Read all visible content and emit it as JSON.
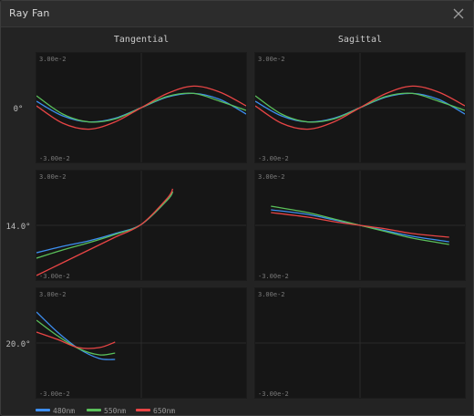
{
  "window": {
    "title": "Ray Fan"
  },
  "column_titles": [
    "Tangential",
    "Sagittal"
  ],
  "row_labels": [
    "0°",
    "14.0°",
    "20.0°"
  ],
  "axis": {
    "ymax_label": "3.00e-2",
    "ymin_label": "-3.00e-2"
  },
  "legend": [
    {
      "label": "480nm",
      "color": "#3d8ef0"
    },
    {
      "label": "550nm",
      "color": "#5ac05a"
    },
    {
      "label": "650nm",
      "color": "#e84545"
    }
  ],
  "chart_data": [
    {
      "type": "line",
      "field": "0°",
      "view": "Tangential",
      "xlim": [
        -1,
        1
      ],
      "ylim": [
        -0.03,
        0.03
      ],
      "grid": true,
      "series": [
        {
          "name": "480nm",
          "color": "#3d8ef0",
          "x": [
            -1,
            -0.75,
            -0.5,
            -0.25,
            0,
            0.25,
            0.5,
            0.75,
            1
          ],
          "y": [
            0.0035,
            -0.0045,
            -0.0078,
            -0.0058,
            0,
            0.0058,
            0.0078,
            0.0045,
            -0.0035
          ]
        },
        {
          "name": "550nm",
          "color": "#5ac05a",
          "x": [
            -1,
            -0.75,
            -0.5,
            -0.25,
            0,
            0.25,
            0.5,
            0.75,
            1
          ],
          "y": [
            0.0065,
            -0.0035,
            -0.0078,
            -0.0062,
            0,
            0.0062,
            0.0078,
            0.0035,
            -0.0015
          ]
        },
        {
          "name": "650nm",
          "color": "#e84545",
          "x": [
            -1,
            -0.75,
            -0.5,
            -0.25,
            0,
            0.25,
            0.5,
            0.75,
            1
          ],
          "y": [
            0.001,
            -0.0085,
            -0.0118,
            -0.0078,
            0,
            0.0078,
            0.0118,
            0.0085,
            0.001
          ]
        }
      ]
    },
    {
      "type": "line",
      "field": "0°",
      "view": "Sagittal",
      "xlim": [
        -1,
        1
      ],
      "ylim": [
        -0.03,
        0.03
      ],
      "grid": true,
      "series": [
        {
          "name": "480nm",
          "color": "#3d8ef0",
          "x": [
            -1,
            -0.75,
            -0.5,
            -0.25,
            0,
            0.25,
            0.5,
            0.75,
            1
          ],
          "y": [
            0.0035,
            -0.0045,
            -0.0078,
            -0.0058,
            0,
            0.0058,
            0.0078,
            0.0045,
            -0.0035
          ]
        },
        {
          "name": "550nm",
          "color": "#5ac05a",
          "x": [
            -1,
            -0.75,
            -0.5,
            -0.25,
            0,
            0.25,
            0.5,
            0.75,
            1
          ],
          "y": [
            0.0065,
            -0.0035,
            -0.0078,
            -0.0062,
            0,
            0.0062,
            0.0078,
            0.0035,
            -0.0015
          ]
        },
        {
          "name": "650nm",
          "color": "#e84545",
          "x": [
            -1,
            -0.75,
            -0.5,
            -0.25,
            0,
            0.25,
            0.5,
            0.75,
            1
          ],
          "y": [
            0.001,
            -0.0085,
            -0.0118,
            -0.0078,
            0,
            0.0078,
            0.0118,
            0.0085,
            0.001
          ]
        }
      ]
    },
    {
      "type": "line",
      "field": "14.0°",
      "view": "Tangential",
      "xlim": [
        -1,
        1
      ],
      "ylim": [
        -0.03,
        0.03
      ],
      "grid": true,
      "series": [
        {
          "name": "480nm",
          "color": "#3d8ef0",
          "x": [
            -1,
            -0.75,
            -0.5,
            -0.25,
            0,
            0.25,
            0.3
          ],
          "y": [
            -0.015,
            -0.0115,
            -0.0085,
            -0.0045,
            0.0005,
            0.014,
            0.0185
          ]
        },
        {
          "name": "550nm",
          "color": "#5ac05a",
          "x": [
            -1,
            -0.75,
            -0.5,
            -0.25,
            0,
            0.25,
            0.3
          ],
          "y": [
            -0.018,
            -0.0135,
            -0.0095,
            -0.005,
            0.0005,
            0.014,
            0.0185
          ]
        },
        {
          "name": "650nm",
          "color": "#e84545",
          "x": [
            -1,
            -0.75,
            -0.5,
            -0.25,
            0,
            0.25,
            0.3
          ],
          "y": [
            -0.0275,
            -0.0205,
            -0.0135,
            -0.0065,
            0.0005,
            0.015,
            0.02
          ]
        }
      ]
    },
    {
      "type": "line",
      "field": "14.0°",
      "view": "Sagittal",
      "xlim": [
        -1,
        1
      ],
      "ylim": [
        -0.03,
        0.03
      ],
      "grid": true,
      "series": [
        {
          "name": "480nm",
          "color": "#3d8ef0",
          "x": [
            -0.85,
            -0.5,
            -0.25,
            0,
            0.25,
            0.5,
            0.85
          ],
          "y": [
            0.0085,
            0.006,
            0.003,
            0,
            -0.003,
            -0.006,
            -0.009
          ]
        },
        {
          "name": "550nm",
          "color": "#5ac05a",
          "x": [
            -0.85,
            -0.5,
            -0.25,
            0,
            0.25,
            0.5,
            0.85
          ],
          "y": [
            0.0105,
            0.007,
            0.0035,
            0,
            -0.0035,
            -0.007,
            -0.0105
          ]
        },
        {
          "name": "650nm",
          "color": "#e84545",
          "x": [
            -0.85,
            -0.5,
            -0.25,
            0,
            0.25,
            0.5,
            0.85
          ],
          "y": [
            0.007,
            0.0045,
            0.002,
            0,
            -0.002,
            -0.0045,
            -0.0065
          ]
        }
      ]
    },
    {
      "type": "line",
      "field": "20.0°",
      "view": "Tangential",
      "xlim": [
        -1,
        1
      ],
      "ylim": [
        -0.03,
        0.03
      ],
      "grid": true,
      "series": [
        {
          "name": "480nm",
          "color": "#3d8ef0",
          "x": [
            -1,
            -0.8,
            -0.6,
            -0.4,
            -0.25
          ],
          "y": [
            0.017,
            0.006,
            -0.003,
            -0.0085,
            -0.009
          ]
        },
        {
          "name": "550nm",
          "color": "#5ac05a",
          "x": [
            -1,
            -0.8,
            -0.6,
            -0.4,
            -0.25
          ],
          "y": [
            0.0125,
            0.004,
            -0.003,
            -0.0065,
            -0.0055
          ]
        },
        {
          "name": "650nm",
          "color": "#e84545",
          "x": [
            -1,
            -0.8,
            -0.6,
            -0.4,
            -0.25
          ],
          "y": [
            0.006,
            0.002,
            -0.0025,
            -0.0025,
            0.0005
          ]
        }
      ]
    },
    {
      "type": "line",
      "field": "20.0°",
      "view": "Sagittal",
      "xlim": [
        -1,
        1
      ],
      "ylim": [
        -0.03,
        0.03
      ],
      "grid": true,
      "series": []
    }
  ]
}
